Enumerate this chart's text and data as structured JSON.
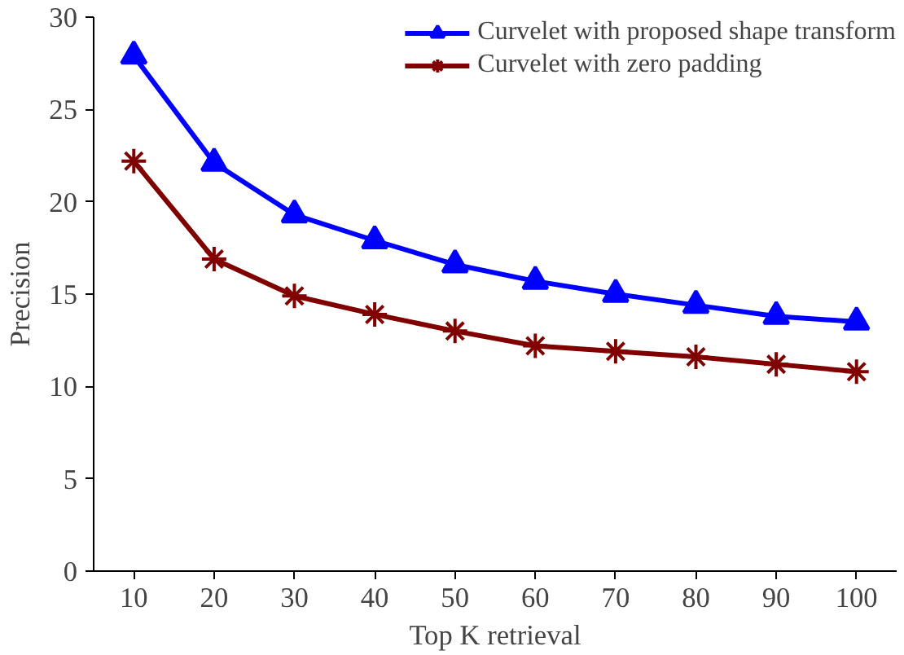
{
  "chart_data": {
    "type": "line",
    "xlabel": "Top K retrieval",
    "ylabel": "Precision",
    "categories": [
      "10",
      "20",
      "30",
      "40",
      "50",
      "60",
      "70",
      "80",
      "90",
      "100"
    ],
    "ylim": [
      0,
      30
    ],
    "yticks": [
      0,
      5,
      10,
      15,
      20,
      25,
      30
    ],
    "grid": false,
    "legend": "top right",
    "series": [
      {
        "name": "Curvelet with proposed shape transform",
        "color": "#0000ff",
        "marker": "triangle",
        "values": [
          27.9,
          22.1,
          19.3,
          17.9,
          16.6,
          15.7,
          15.0,
          14.4,
          13.8,
          13.5
        ]
      },
      {
        "name": "Curvelet with zero padding",
        "color": "#800000",
        "marker": "cross",
        "values": [
          22.2,
          16.9,
          14.9,
          13.9,
          13.0,
          12.2,
          11.9,
          11.6,
          11.2,
          10.8
        ]
      }
    ]
  }
}
